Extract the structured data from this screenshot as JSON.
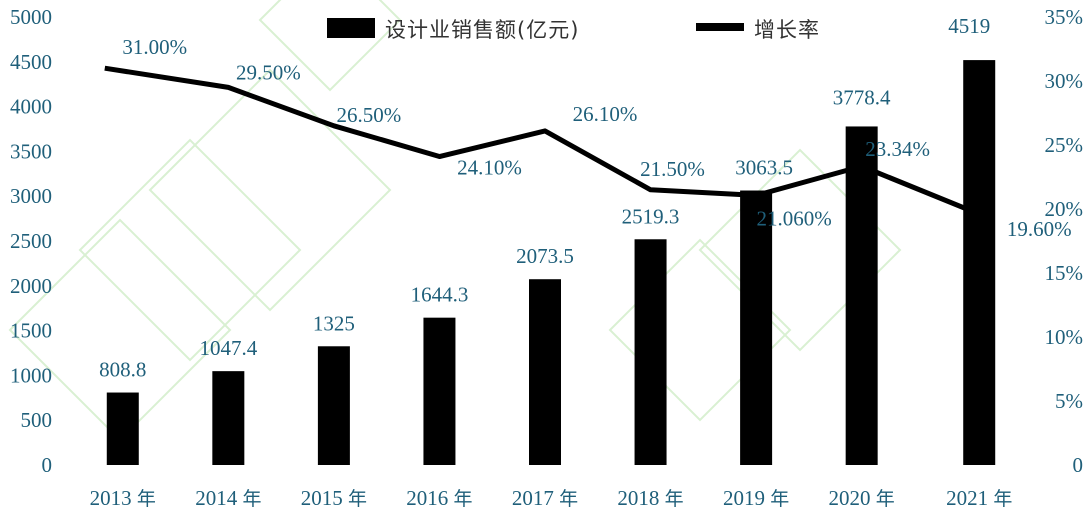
{
  "chart_data": {
    "type": "bar",
    "categories": [
      "2013 年",
      "2014 年",
      "2015 年",
      "2016 年",
      "2017 年",
      "2018 年",
      "2019 年",
      "2020 年",
      "2021 年"
    ],
    "series": [
      {
        "name": "设计业销售额(亿元)",
        "type": "bar",
        "axis": "left",
        "values": [
          808.8,
          1047.4,
          1325,
          1644.3,
          2073.5,
          2519.3,
          3063.5,
          3778.4,
          4519
        ],
        "labels": [
          "808.8",
          "1047.4",
          "1325",
          "1644.3",
          "2073.5",
          "2519.3",
          "3063.5",
          "3778.4",
          "4519"
        ],
        "color": "#000000"
      },
      {
        "name": "增长率",
        "type": "line",
        "axis": "right",
        "values": [
          31.0,
          29.5,
          26.5,
          24.1,
          26.1,
          21.5,
          21.06,
          23.34,
          19.6
        ],
        "labels": [
          "31.00%",
          "29.50%",
          "26.50%",
          "24.10%",
          "26.10%",
          "21.50%",
          "21.060%",
          "23.34%",
          "19.60%"
        ],
        "color": "#000000"
      }
    ],
    "y_left": {
      "ylim": [
        0,
        5000
      ],
      "ticks": [
        "0",
        "500",
        "1000",
        "1500",
        "2000",
        "2500",
        "3000",
        "3500",
        "4000",
        "4500",
        "5000"
      ]
    },
    "y_right": {
      "ylim": [
        0,
        35
      ],
      "ticks": [
        "0",
        "5%",
        "10%",
        "15%",
        "20%",
        "25%",
        "30%",
        "35%"
      ]
    },
    "legend": {
      "placement": "top-center"
    },
    "grid": false,
    "title": "",
    "xlabel": "",
    "ylabel": ""
  }
}
